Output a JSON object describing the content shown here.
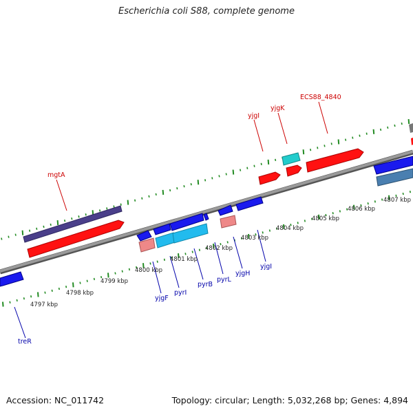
{
  "title": "Escherichia coli S88, complete genome",
  "footer": {
    "accession": "Accession: NC_011742",
    "summary": "Topology: circular; Length: 5,032,268 bp; Genes: 4,894"
  },
  "colors": {
    "forward_label": "#cc0000",
    "reverse_label": "#0000aa",
    "backbone": "#808080",
    "tick": "#228b22",
    "red": "#ff1111",
    "blue": "#1a1aee",
    "cyan": "#22bbee",
    "teal": "#22cccc",
    "pink": "#ee8888",
    "indigo": "#4a3f8a",
    "steel": "#4a7fb0",
    "gray": "#777777"
  },
  "ticks": [
    {
      "label": "4797 kbp"
    },
    {
      "label": "4798 kbp"
    },
    {
      "label": "4799 kbp"
    },
    {
      "label": "4800 kbp"
    },
    {
      "label": "4801 kbp"
    },
    {
      "label": "4802 kbp"
    },
    {
      "label": "4803 kbp"
    },
    {
      "label": "4804 kbp"
    },
    {
      "label": "4805 kbp"
    },
    {
      "label": "4806 kbp"
    },
    {
      "label": "4807 kbp"
    }
  ],
  "forward_labels": [
    "mgtA",
    "yjgI",
    "yjgK",
    "ECS88_4840"
  ],
  "reverse_labels": [
    "treR",
    "yjgF",
    "pyrI",
    "pyrB",
    "pyrL",
    "yjgH",
    "yjgI"
  ]
}
